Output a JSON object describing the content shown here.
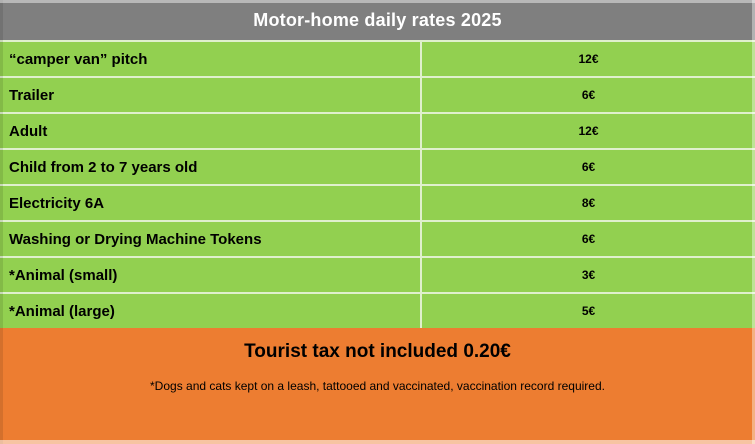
{
  "title": "Motor-home daily rates 2025",
  "rates": [
    {
      "label": "“camper van” pitch",
      "price": "12€"
    },
    {
      "label": "Trailer",
      "price": "6€"
    },
    {
      "label": "Adult",
      "price": "12€"
    },
    {
      "label": "Child from 2 to 7 years old",
      "price": "6€"
    },
    {
      "label": "Electricity 6A",
      "price": "8€"
    },
    {
      "label": "Washing or Drying Machine Tokens",
      "price": "6€"
    },
    {
      "label": "*Animal (small)",
      "price": "3€"
    },
    {
      "label": "*Animal (large)",
      "price": "5€"
    }
  ],
  "footer": {
    "tax_note": "Tourist tax not included 0.20€",
    "animal_note": "*Dogs and cats kept on a leash, tattooed and vaccinated, vaccination record required."
  },
  "colors": {
    "header-bg": "#7F7F7F",
    "header-text": "#FFFFFF",
    "row-bg": "#92D050",
    "row-text": "#000000",
    "divider": "#DFF0CD",
    "footer-bg": "#ED7D31",
    "footer-text": "#000000"
  }
}
